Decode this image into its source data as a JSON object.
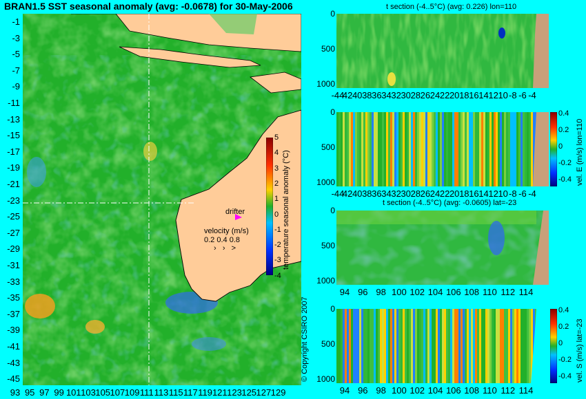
{
  "chart_data": [
    {
      "type": "heatmap",
      "title": "BRAN1.5 SST seasonal anomaly (avg: -0.0678) for 30-May-2006",
      "x_tick_labels": [
        "93",
        "95",
        "97",
        "99",
        "101",
        "103",
        "105",
        "107",
        "109",
        "111",
        "113",
        "115",
        "117",
        "119",
        "121",
        "123",
        "125",
        "127",
        "129"
      ],
      "y_tick_labels": [
        "-1",
        "-3",
        "-5",
        "-7",
        "-9",
        "-11",
        "-13",
        "-15",
        "-17",
        "-19",
        "-21",
        "-23",
        "-25",
        "-27",
        "-29",
        "-31",
        "-33",
        "-35",
        "-37",
        "-39",
        "-41",
        "-43",
        "-45"
      ],
      "xlim": [
        93,
        130
      ],
      "ylim": [
        -46,
        0
      ],
      "colorbar": {
        "label": "temperature seasonal anomaly (°C)",
        "tick_labels": [
          "5",
          "4",
          "3",
          "2",
          "1",
          "0",
          "-1",
          "-2",
          "-3",
          "-4"
        ],
        "range": [
          -4,
          5
        ]
      },
      "annotations": {
        "drifter": "drifter",
        "velocity_title": "velocity (m/s)",
        "velocity_scale": "0.2 0.4 0.8",
        "crosshair_lon": 110,
        "crosshair_lat": -23
      }
    },
    {
      "type": "heatmap",
      "title": "t section (-4..5°C) (avg: 0.226) lon=110",
      "x_tick_labels": [
        "-44",
        "42",
        "40",
        "38",
        "36",
        "34",
        "32",
        "30",
        "28",
        "26",
        "24",
        "22",
        "20",
        "18",
        "16",
        "14",
        "12",
        "10",
        "-8",
        "-6",
        "-4"
      ],
      "y_tick_labels": [
        "0",
        "500",
        "1000"
      ]
    },
    {
      "type": "heatmap",
      "title": "",
      "x_tick_labels": [
        "-44",
        "42",
        "40",
        "38",
        "36",
        "34",
        "32",
        "30",
        "28",
        "26",
        "24",
        "22",
        "20",
        "18",
        "16",
        "14",
        "12",
        "10",
        "-8",
        "-6",
        "-4"
      ],
      "y_tick_labels": [
        "0",
        "500",
        "1000"
      ],
      "colorbar": {
        "label": "vel. E (m/s) lon=110",
        "tick_labels": [
          "0.4",
          "0.2",
          "0",
          "-0.2",
          "-0.4"
        ]
      }
    },
    {
      "type": "heatmap",
      "title": "t section (-4..5°C) (avg: -0.0605) lat=-23",
      "x_tick_labels": [
        "94",
        "96",
        "98",
        "100",
        "102",
        "104",
        "106",
        "108",
        "110",
        "112",
        "114"
      ],
      "y_tick_labels": [
        "0",
        "500",
        "1000"
      ]
    },
    {
      "type": "heatmap",
      "title": "",
      "x_tick_labels": [
        "94",
        "96",
        "98",
        "100",
        "102",
        "104",
        "106",
        "108",
        "110",
        "112",
        "114"
      ],
      "y_tick_labels": [
        "0",
        "500",
        "1000"
      ],
      "colorbar": {
        "label": "vel. S (m/s) lat=-23",
        "tick_labels": [
          "0.4",
          "0.2",
          "0",
          "-0.2",
          "-0.4"
        ]
      }
    }
  ],
  "copyright": "© Copyright CSIRO 2007",
  "colors": {
    "background": "#00ffff",
    "ocean": "#22b02a",
    "land": "#ffcc99",
    "section_land": "#c8a07a"
  }
}
